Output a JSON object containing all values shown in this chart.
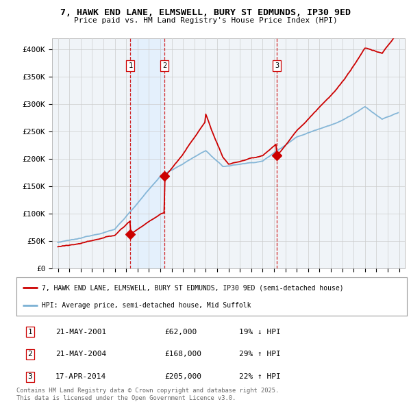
{
  "title1": "7, HAWK END LANE, ELMSWELL, BURY ST EDMUNDS, IP30 9ED",
  "title2": "Price paid vs. HM Land Registry's House Price Index (HPI)",
  "ylim": [
    0,
    420000
  ],
  "yticks": [
    0,
    50000,
    100000,
    150000,
    200000,
    250000,
    300000,
    350000,
    400000
  ],
  "ytick_labels": [
    "£0",
    "£50K",
    "£100K",
    "£150K",
    "£200K",
    "£250K",
    "£300K",
    "£350K",
    "£400K"
  ],
  "legend_line1": "7, HAWK END LANE, ELMSWELL, BURY ST EDMUNDS, IP30 9ED (semi-detached house)",
  "legend_line2": "HPI: Average price, semi-detached house, Mid Suffolk",
  "sale1_date": "21-MAY-2001",
  "sale1_price": 62000,
  "sale1_hpi": "19% ↓ HPI",
  "sale2_date": "21-MAY-2004",
  "sale2_price": 168000,
  "sale2_hpi": "29% ↑ HPI",
  "sale3_date": "17-APR-2014",
  "sale3_price": 205000,
  "sale3_hpi": "22% ↑ HPI",
  "footnote": "Contains HM Land Registry data © Crown copyright and database right 2025.\nThis data is licensed under the Open Government Licence v3.0.",
  "sale_color": "#cc0000",
  "hpi_color": "#7ab0d4",
  "vline_color": "#cc0000",
  "shade_color": "#ddeeff",
  "bg_color": "#f0f4f8",
  "plot_bg": "#ffffff",
  "sale1_t": 2001.38,
  "sale2_t": 2004.38,
  "sale3_t": 2014.25
}
